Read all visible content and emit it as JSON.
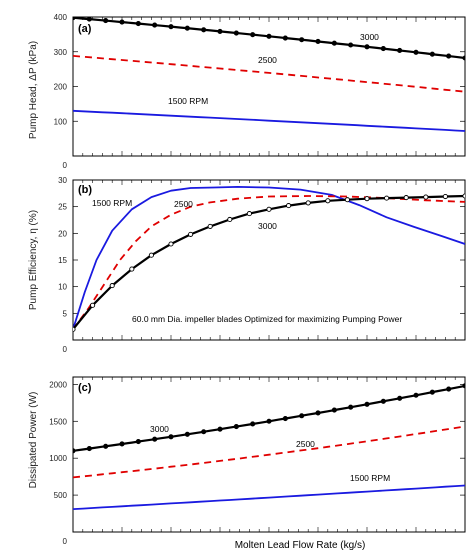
{
  "chart_data": [
    {
      "type": "line",
      "panel_label": "(a)",
      "ylabel": "Pump Head, ΔP (kPa)",
      "ylim": [
        0,
        400
      ],
      "yticks": [
        0,
        100,
        200,
        300,
        400
      ],
      "xlim": [
        0,
        1
      ],
      "series": [
        {
          "name": "3000",
          "color": "#000000",
          "style": "solid",
          "markers": "filled",
          "x": [
            0,
            1
          ],
          "y": [
            398,
            282
          ],
          "curve": 0.15
        },
        {
          "name": "2500",
          "color": "#e00000",
          "style": "dashed",
          "markers": "none",
          "x": [
            0,
            1
          ],
          "y": [
            288,
            185
          ],
          "curve": 0.1
        },
        {
          "name": "1500 RPM",
          "color": "#1a1ae0",
          "style": "solid",
          "markers": "none",
          "x": [
            0,
            1
          ],
          "y": [
            130,
            72
          ],
          "curve": 0.05
        }
      ],
      "annotations": [
        {
          "text": "3000",
          "series": 0
        },
        {
          "text": "2500",
          "series": 1
        },
        {
          "text": "1500 RPM",
          "series": 2
        }
      ]
    },
    {
      "type": "line",
      "panel_label": "(b)",
      "ylabel": "Pump Efficiency, η (%)",
      "ylim": [
        0,
        30
      ],
      "yticks": [
        0,
        5,
        10,
        15,
        20,
        25,
        30
      ],
      "xlim": [
        0,
        1
      ],
      "series": [
        {
          "name": "1500 RPM",
          "color": "#1a1ae0",
          "style": "solid",
          "markers": "none",
          "x": [
            0,
            0.03,
            0.06,
            0.1,
            0.15,
            0.2,
            0.25,
            0.3,
            0.36,
            0.42,
            0.5,
            0.58,
            0.66,
            0.73,
            0.8,
            0.87,
            0.94,
            1.0
          ],
          "y": [
            2,
            9,
            15,
            20.5,
            24.5,
            26.8,
            28,
            28.5,
            28.6,
            28.7,
            28.6,
            28.2,
            27.2,
            25.3,
            23,
            21.2,
            19.5,
            18
          ]
        },
        {
          "name": "2500",
          "color": "#e00000",
          "style": "dashed",
          "markers": "none",
          "x": [
            0,
            0.04,
            0.08,
            0.12,
            0.16,
            0.2,
            0.25,
            0.3,
            0.35,
            0.42,
            0.5,
            0.6,
            0.7,
            0.8,
            0.9,
            1.0
          ],
          "y": [
            2,
            6,
            10.5,
            15,
            18.5,
            21.3,
            23.5,
            25,
            25.8,
            26.5,
            26.9,
            27,
            26.9,
            26.6,
            26.2,
            25.9
          ]
        },
        {
          "name": "3000",
          "color": "#000000",
          "style": "solid",
          "markers": "open",
          "x": [
            0,
            0.05,
            0.1,
            0.15,
            0.2,
            0.25,
            0.3,
            0.35,
            0.4,
            0.45,
            0.5,
            0.55,
            0.6,
            0.65,
            0.7,
            0.75,
            0.8,
            0.85,
            0.9,
            0.95,
            1.0
          ],
          "y": [
            2,
            6.5,
            10.2,
            13.3,
            15.9,
            18,
            19.8,
            21.3,
            22.6,
            23.7,
            24.5,
            25.2,
            25.7,
            26.1,
            26.3,
            26.5,
            26.6,
            26.7,
            26.8,
            26.9,
            27
          ]
        }
      ],
      "annotations": [
        {
          "text": "1500 RPM",
          "series": 0
        },
        {
          "text": "2500",
          "series": 1
        },
        {
          "text": "3000",
          "series": 2
        },
        {
          "text": "60.0  mm Dia.  impeller blades  Optimized  for maximizing  Pumping  Power",
          "series": null
        }
      ]
    },
    {
      "type": "line",
      "panel_label": "(c)",
      "ylabel": "Dissipated Power (W)",
      "xlabel": "Molten Lead Flow Rate (kg/s)",
      "ylim": [
        0,
        2100
      ],
      "yticks": [
        0,
        500,
        1000,
        1500,
        2000
      ],
      "xlim": [
        0,
        1
      ],
      "series": [
        {
          "name": "3000",
          "color": "#000000",
          "style": "solid",
          "markers": "filled",
          "x": [
            0,
            1
          ],
          "y": [
            1100,
            1980
          ],
          "curve": -0.18
        },
        {
          "name": "2500",
          "color": "#e00000",
          "style": "dashed",
          "markers": "none",
          "x": [
            0,
            1
          ],
          "y": [
            740,
            1430
          ],
          "curve": -0.22
        },
        {
          "name": "1500 RPM",
          "color": "#1a1ae0",
          "style": "solid",
          "markers": "none",
          "x": [
            0,
            1
          ],
          "y": [
            310,
            630
          ],
          "curve": -0.05
        }
      ],
      "annotations": [
        {
          "text": "3000",
          "series": 0
        },
        {
          "text": "2500",
          "series": 1
        },
        {
          "text": "1500 RPM",
          "series": 2
        }
      ]
    }
  ]
}
